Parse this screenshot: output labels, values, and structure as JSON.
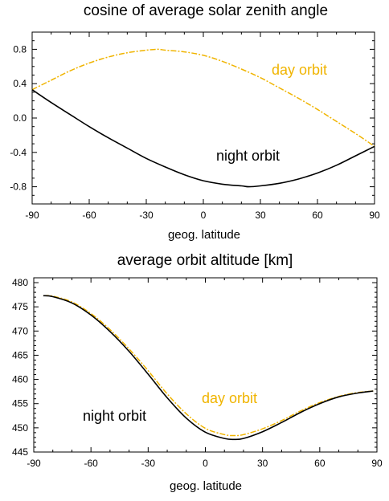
{
  "chart_data": [
    {
      "type": "line",
      "title": "cosine of average solar zenith angle",
      "xlabel": "geog. latitude",
      "ylabel": "",
      "xlim": [
        -90,
        90
      ],
      "ylim": [
        -1.0,
        1.0
      ],
      "xticks": [
        -90,
        -60,
        -30,
        0,
        30,
        60,
        90
      ],
      "xtick_labels": [
        "-90",
        "-60",
        "-30",
        "0",
        "30",
        "60",
        "90"
      ],
      "yticks": [
        -0.8,
        -0.4,
        0.0,
        0.4,
        0.8
      ],
      "ytick_labels": [
        "-0.8",
        "-0.4",
        "0.0",
        "0.4",
        "0.8"
      ],
      "grid": false,
      "series": [
        {
          "name": "day orbit",
          "color": "#f0b400",
          "style": "dash-dot",
          "x": [
            -90,
            -80,
            -70,
            -60,
            -50,
            -40,
            -30,
            -24,
            -20,
            -10,
            0,
            10,
            20,
            30,
            40,
            50,
            60,
            70,
            80,
            90
          ],
          "y": [
            0.33,
            0.44,
            0.55,
            0.64,
            0.71,
            0.76,
            0.79,
            0.8,
            0.79,
            0.77,
            0.73,
            0.66,
            0.57,
            0.47,
            0.35,
            0.23,
            0.1,
            -0.04,
            -0.18,
            -0.33
          ]
        },
        {
          "name": "night orbit",
          "color": "#000000",
          "style": "solid",
          "x": [
            -90,
            -80,
            -70,
            -60,
            -50,
            -40,
            -30,
            -20,
            -10,
            0,
            10,
            20,
            24,
            30,
            40,
            50,
            60,
            70,
            80,
            90
          ],
          "y": [
            0.33,
            0.18,
            0.04,
            -0.1,
            -0.23,
            -0.35,
            -0.47,
            -0.57,
            -0.66,
            -0.73,
            -0.77,
            -0.79,
            -0.8,
            -0.79,
            -0.76,
            -0.71,
            -0.64,
            -0.55,
            -0.44,
            -0.33
          ]
        }
      ],
      "annotations": [
        {
          "text": "day orbit",
          "series": "day orbit"
        },
        {
          "text": "night orbit",
          "series": "night orbit"
        }
      ]
    },
    {
      "type": "line",
      "title": "average orbit altitude [km]",
      "xlabel": "geog. latitude",
      "ylabel": "",
      "xlim": [
        -90,
        90
      ],
      "ylim": [
        445,
        481
      ],
      "xticks": [
        -90,
        -60,
        -30,
        0,
        30,
        60,
        90
      ],
      "xtick_labels": [
        "-90",
        "-60",
        "-30",
        "0",
        "30",
        "60",
        "90"
      ],
      "yticks": [
        445,
        450,
        455,
        460,
        465,
        470,
        475,
        480
      ],
      "ytick_labels": [
        "445",
        "450",
        "455",
        "460",
        "465",
        "470",
        "475",
        "480"
      ],
      "grid": false,
      "series": [
        {
          "name": "day orbit",
          "color": "#f0b400",
          "style": "dash-dot",
          "x": [
            -85,
            -80,
            -70,
            -60,
            -50,
            -40,
            -30,
            -20,
            -10,
            0,
            10,
            15,
            20,
            30,
            40,
            50,
            60,
            70,
            80,
            88
          ],
          "y": [
            477.3,
            477.2,
            476.0,
            473.6,
            470.3,
            466.3,
            461.8,
            457.0,
            452.9,
            449.9,
            448.6,
            448.4,
            448.6,
            449.8,
            451.5,
            453.5,
            455.2,
            456.5,
            457.3,
            457.6
          ]
        },
        {
          "name": "night orbit",
          "color": "#000000",
          "style": "solid",
          "x": [
            -85,
            -80,
            -70,
            -60,
            -50,
            -40,
            -30,
            -20,
            -10,
            0,
            10,
            15,
            20,
            30,
            40,
            50,
            60,
            70,
            80,
            88
          ],
          "y": [
            477.3,
            477.1,
            475.8,
            473.3,
            469.9,
            465.8,
            461.1,
            456.2,
            452.0,
            449.1,
            447.8,
            447.6,
            447.8,
            449.2,
            451.1,
            453.2,
            455.0,
            456.4,
            457.2,
            457.6
          ]
        }
      ],
      "annotations": [
        {
          "text": "day orbit",
          "series": "day orbit"
        },
        {
          "text": "night orbit",
          "series": "night orbit"
        }
      ]
    }
  ]
}
